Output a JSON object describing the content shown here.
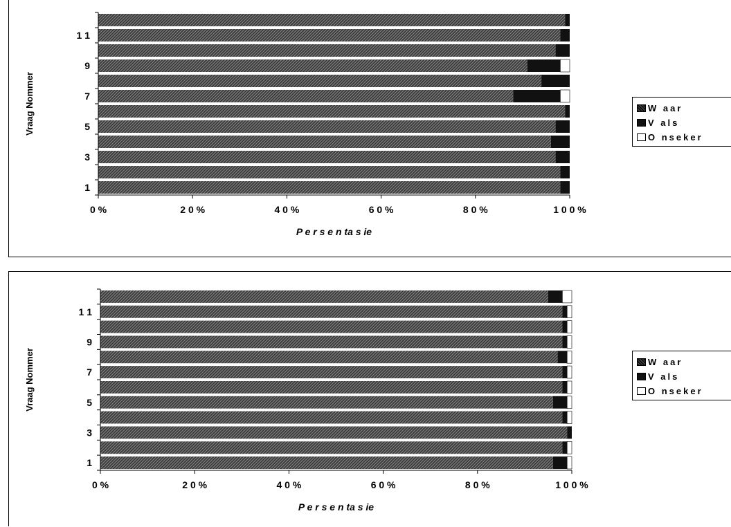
{
  "chart_data": [
    {
      "type": "bar",
      "stacked": "percent",
      "orientation": "horizontal",
      "xlabel": "P e r s e n ta s ie",
      "ylabel": "Vraag Nommer",
      "y_ticks": [
        "1",
        "3",
        "5",
        "7",
        "9",
        "1 1"
      ],
      "x_ticks": [
        "0 %",
        "2 0 %",
        "4 0 %",
        "6 0 %",
        "8 0 %",
        "1 0 0 %"
      ],
      "xlim": [
        0,
        100
      ],
      "legend_position": "right",
      "categories": [
        "1",
        "2",
        "3",
        "4",
        "5",
        "6",
        "7",
        "8",
        "9",
        "10",
        "11",
        "12"
      ],
      "series": [
        {
          "name": "W aar",
          "color": "#3a3a3a",
          "values": [
            98,
            98,
            97,
            96,
            97,
            99,
            88,
            94,
            91,
            97,
            98,
            99
          ]
        },
        {
          "name": "V als",
          "color": "#111111",
          "values": [
            2,
            2,
            3,
            4,
            3,
            1,
            10,
            6,
            7,
            3,
            2,
            1
          ]
        },
        {
          "name": "O nseker",
          "color": "#ffffff",
          "values": [
            0,
            0,
            0,
            0,
            0,
            0,
            2,
            0,
            2,
            0,
            0,
            0
          ]
        }
      ]
    },
    {
      "type": "bar",
      "stacked": "percent",
      "orientation": "horizontal",
      "xlabel": "P e r s e n ta s ie",
      "ylabel": "Vraag Nommer",
      "y_ticks": [
        "1",
        "3",
        "5",
        "7",
        "9",
        "1 1"
      ],
      "x_ticks": [
        "0 %",
        "2 0 %",
        "4 0 %",
        "6 0 %",
        "8 0 %",
        "1 0 0 %"
      ],
      "xlim": [
        0,
        100
      ],
      "legend_position": "right",
      "categories": [
        "1",
        "2",
        "3",
        "4",
        "5",
        "6",
        "7",
        "8",
        "9",
        "10",
        "11",
        "12"
      ],
      "series": [
        {
          "name": "W aar",
          "color": "#3a3a3a",
          "values": [
            96,
            98,
            99,
            98,
            96,
            98,
            98,
            97,
            98,
            98,
            98,
            95
          ]
        },
        {
          "name": "V als",
          "color": "#111111",
          "values": [
            3,
            1,
            1,
            1,
            3,
            1,
            1,
            2,
            1,
            1,
            1,
            3
          ]
        },
        {
          "name": "O nseker",
          "color": "#ffffff",
          "values": [
            1,
            1,
            0,
            1,
            1,
            1,
            1,
            1,
            1,
            1,
            1,
            2
          ]
        }
      ]
    }
  ]
}
